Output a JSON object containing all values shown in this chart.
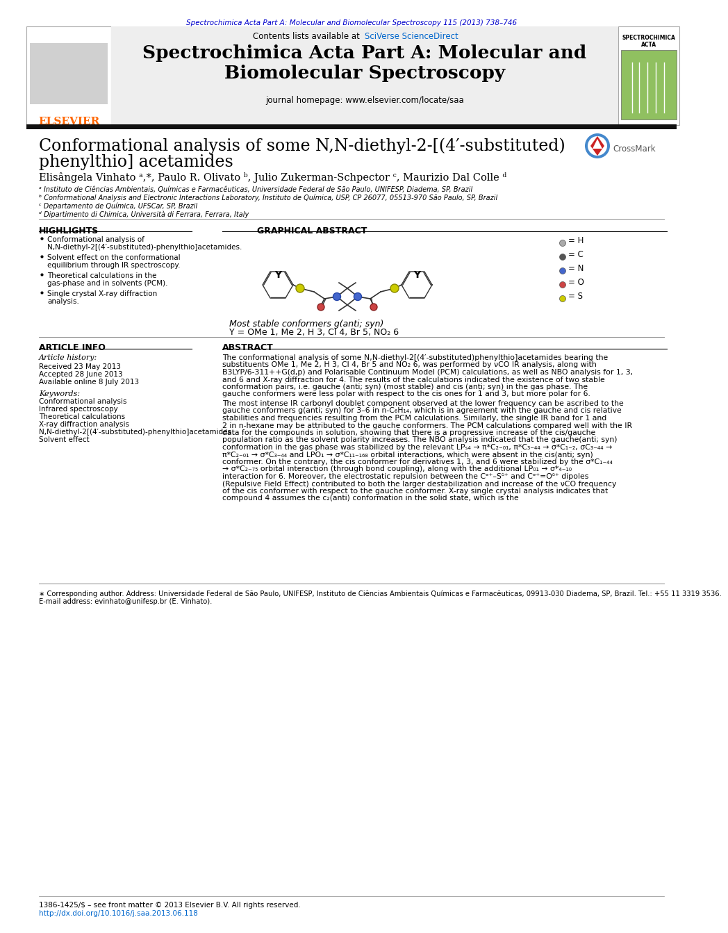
{
  "page_bg": "#ffffff",
  "top_journal_line": "Spectrochimica Acta Part A: Molecular and Biomolecular Spectroscopy 115 (2013) 738–746",
  "top_journal_color": "#0000cc",
  "header_bg": "#e8e8e8",
  "header_contents": "Contents lists available at",
  "header_sciverse": "SciVerse ScienceDirect",
  "header_sciverse_color": "#0066cc",
  "header_journal_title": "Spectrochimica Acta Part A: Molecular and\nBiomolecular Spectroscopy",
  "header_homepage": "journal homepage: www.elsevier.com/locate/saa",
  "paper_title_line1": "Conformational analysis of some N,N-diethyl-2-[(4′-substituted)",
  "paper_title_line2": "phenylthio] acetamides",
  "authors": "Elisângela Vinhato ᵃ,*, Paulo R. Olivato ᵇ, Julio Zukerman-Schpector ᶜ, Maurizio Dal Colle ᵈ",
  "affil_a": "ᵃ Instituto de Ciências Ambientais, Químicas e Farmacêuticas, Universidade Federal de São Paulo, UNIFESP, Diadema, SP, Brazil",
  "affil_b": "ᵇ Conformational Analysis and Electronic Interactions Laboratory, Instituto de Química, USP, CP 26077, 05513-970 São Paulo, SP, Brazil",
  "affil_c": "ᶜ Departamento de Química, UFSCar, SP, Brazil",
  "affil_d": "ᵈ Dipartimento di Chimica, Università di Ferrara, Ferrara, Italy",
  "highlights_title": "HIGHLIGHTS",
  "highlights": [
    "Conformational analysis of N,N-diethyl-2[(4′-substituted)-phenylthio]acetamides.",
    "Solvent effect on the conformational equilibrium through IR spectroscopy.",
    "Theoretical calculations in the gas-phase and in solvents (PCM).",
    "Single crystal X-ray diffraction analysis."
  ],
  "graphical_abstract_title": "GRAPHICAL ABSTRACT",
  "graphical_caption": "Most stable conformers g(anti; syn)",
  "graphical_y_label": "Y = OMe 1, Me 2, H 3, Cl 4, Br 5, NO₂ 6",
  "legend_H": "= H",
  "legend_C": "= C",
  "legend_N": "= N",
  "legend_O": "= O",
  "legend_S": "= S",
  "article_info_title": "ARTICLE INFO",
  "article_history_title": "Article history:",
  "received": "Received 23 May 2013",
  "accepted": "Accepted 28 June 2013",
  "available": "Available online 8 July 2013",
  "keywords_title": "Keywords:",
  "keywords": [
    "Conformational analysis",
    "Infrared spectroscopy",
    "Theoretical calculations",
    "X-ray diffraction analysis",
    "N,N-diethyl-2[(4′-substituted)-phenylthio]acetamides",
    "Solvent effect"
  ],
  "abstract_title": "ABSTRACT",
  "abstract_text": "The conformational analysis of some N,N-diethyl-2[(4′-substituted)phenylthio]acetamides bearing the substituents OMe 1, Me 2, H 3, Cl 4, Br 5 and NO₂ 6, was performed by νCO IR analysis, along with B3LYP/6-311++G(d,p) and Polarisable Continuum Model (PCM) calculations, as well as NBO analysis for 1, 3, and 6 and X-ray diffraction for 4. The results of the calculations indicated the existence of two stable conformation pairs, i.e. gauche (anti; syn) (most stable) and cis (anti; syn) in the gas phase. The gauche conformers were less polar with respect to the cis ones for 1 and 3, but more polar for 6.\n    The most intense IR carbonyl doublet component observed at the lower frequency can be ascribed to the gauche conformers g(anti; syn) for 3–6 in n-C₆H₁₄, which is in agreement with the gauche and cis relative stabilities and frequencies resulting from the PCM calculations. Similarly, the single IR band for 1 and 2 in n-hexane may be attributed to the gauche conformers. The PCM calculations compared well with the IR data for the compounds in solution, showing that there is a progressive increase of the cis/gauche population ratio as the solvent polarity increases. The NBO analysis indicated that the gauche(anti; syn) conformation in the gas phase was stabilized by the relevant LPₛ₄ → π*C₂₋₀₁, π*C₃₋₄₄ → σ*C₁₋₂, σC₃₋₄₄ → π*C₂₋₀₁ → σ*C₃₋₄₄ and LPO₁ → σ*C₁₁₋₁₆₈ orbital interactions, which were absent in the cis(anti; syn) conformer. On the contrary, the cis conformer for derivatives 1, 3, and 6 were stabilized by the σ*C₁₋₄₄ → σ*C₂₋₇₅ orbital interaction (through bond coupling), along with the additional LP₀₁ → σ*₄₋₁₀ interaction for 6. Moreover, the electrostatic repulsion between the Cᵊ⁺–Sᵟ⁺ and Cᵊ⁺=Oᵟ⁺ dipoles (Repulsive Field Effect) contributed to both the larger destabilization and increase of the νCO frequency of the cis conformer with respect to the gauche conformer. X-ray single crystal analysis indicates that compound 4 assumes the c₂(anti) conformation in the solid state, which is the",
  "footnote_star": "∗ Corresponding author. Address: Universidade Federal de São Paulo, UNIFESP, Instituto de Ciências Ambientais Químicas e Farmacêuticas, 09913-030 Diadema, SP, Brazil. Tel.: +55 11 3319 3536.",
  "footnote_email": "E-mail address: evinhato@unifesp.br (E. Vinhato).",
  "footer_issn": "1386-1425/$ – see front matter © 2013 Elsevier B.V. All rights reserved.",
  "footer_doi": "http://dx.doi.org/10.1016/j.saa.2013.06.118",
  "footer_doi_color": "#0066cc",
  "elsevier_color": "#ff6600",
  "black_bar_color": "#111111"
}
